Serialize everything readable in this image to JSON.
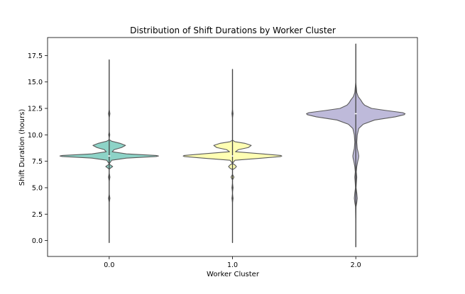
{
  "chart_data": {
    "type": "violin",
    "title": "Distribution of Shift Durations by Worker Cluster",
    "xlabel": "Worker Cluster",
    "ylabel": "Shift Duration (hours)",
    "ylim": [
      -1.5,
      19.2
    ],
    "yticks": [
      0.0,
      2.5,
      5.0,
      7.5,
      10.0,
      12.5,
      15.0,
      17.5
    ],
    "ytick_labels": [
      "0.0",
      "2.5",
      "5.0",
      "7.5",
      "10.0",
      "12.5",
      "15.0",
      "17.5"
    ],
    "categories": [
      "0.0",
      "1.0",
      "2.0"
    ],
    "grid": false,
    "colors": {
      "axes": "#000000",
      "edge": "#5a5a5a",
      "inner": "#444444"
    },
    "violins": [
      {
        "category": "0.0",
        "color": "#8dd3c7",
        "whisker": [
          -0.2,
          17.1
        ],
        "median": 8.0,
        "profile": [
          [
            -0.2,
            0.0
          ],
          [
            3.6,
            0.0
          ],
          [
            4.0,
            0.015
          ],
          [
            4.4,
            0.0
          ],
          [
            5.6,
            0.0
          ],
          [
            6.0,
            0.015
          ],
          [
            6.4,
            0.0
          ],
          [
            6.75,
            0.0
          ],
          [
            6.9,
            0.04
          ],
          [
            7.0,
            0.07
          ],
          [
            7.1,
            0.04
          ],
          [
            7.25,
            0.0
          ],
          [
            7.6,
            0.05
          ],
          [
            7.8,
            0.35
          ],
          [
            7.95,
            0.95
          ],
          [
            8.0,
            1.0
          ],
          [
            8.05,
            0.95
          ],
          [
            8.2,
            0.35
          ],
          [
            8.4,
            0.06
          ],
          [
            8.6,
            0.1
          ],
          [
            8.8,
            0.25
          ],
          [
            9.0,
            0.33
          ],
          [
            9.2,
            0.22
          ],
          [
            9.4,
            0.05
          ],
          [
            9.55,
            0.0
          ],
          [
            9.7,
            0.0
          ],
          [
            10.0,
            0.012
          ],
          [
            10.3,
            0.0
          ],
          [
            11.6,
            0.0
          ],
          [
            12.0,
            0.015
          ],
          [
            12.4,
            0.0
          ],
          [
            17.1,
            0.0
          ]
        ]
      },
      {
        "category": "1.0",
        "color": "#ffffb3",
        "whisker": [
          -0.2,
          16.2
        ],
        "median": 8.0,
        "profile": [
          [
            -0.2,
            0.0
          ],
          [
            3.6,
            0.0
          ],
          [
            4.0,
            0.012
          ],
          [
            4.4,
            0.0
          ],
          [
            4.6,
            0.0
          ],
          [
            5.0,
            0.012
          ],
          [
            5.4,
            0.0
          ],
          [
            5.75,
            0.0
          ],
          [
            5.9,
            0.02
          ],
          [
            6.0,
            0.03
          ],
          [
            6.1,
            0.02
          ],
          [
            6.25,
            0.0
          ],
          [
            6.7,
            0.0
          ],
          [
            6.85,
            0.05
          ],
          [
            7.0,
            0.08
          ],
          [
            7.15,
            0.05
          ],
          [
            7.3,
            0.0
          ],
          [
            7.6,
            0.05
          ],
          [
            7.8,
            0.6
          ],
          [
            7.95,
            0.98
          ],
          [
            8.0,
            1.0
          ],
          [
            8.05,
            0.98
          ],
          [
            8.2,
            0.6
          ],
          [
            8.4,
            0.06
          ],
          [
            8.6,
            0.12
          ],
          [
            8.8,
            0.32
          ],
          [
            9.0,
            0.38
          ],
          [
            9.2,
            0.25
          ],
          [
            9.35,
            0.05
          ],
          [
            9.5,
            0.0
          ],
          [
            11.6,
            0.0
          ],
          [
            12.0,
            0.012
          ],
          [
            12.4,
            0.0
          ],
          [
            16.2,
            0.0
          ]
        ]
      },
      {
        "category": "2.0",
        "color": "#bebada",
        "whisker": [
          -0.6,
          18.6
        ],
        "median": 12.0,
        "profile": [
          [
            -0.6,
            0.0
          ],
          [
            1.5,
            0.0
          ],
          [
            3.2,
            0.005
          ],
          [
            3.6,
            0.02
          ],
          [
            4.0,
            0.03
          ],
          [
            4.5,
            0.02
          ],
          [
            5.0,
            0.006
          ],
          [
            5.5,
            0.012
          ],
          [
            6.0,
            0.02
          ],
          [
            6.5,
            0.01
          ],
          [
            7.0,
            0.02
          ],
          [
            7.5,
            0.04
          ],
          [
            7.8,
            0.055
          ],
          [
            8.0,
            0.06
          ],
          [
            8.3,
            0.05
          ],
          [
            8.7,
            0.03
          ],
          [
            9.3,
            0.02
          ],
          [
            10.0,
            0.03
          ],
          [
            10.6,
            0.06
          ],
          [
            11.0,
            0.15
          ],
          [
            11.4,
            0.38
          ],
          [
            11.7,
            0.8
          ],
          [
            11.9,
            0.98
          ],
          [
            12.0,
            1.0
          ],
          [
            12.1,
            0.95
          ],
          [
            12.3,
            0.62
          ],
          [
            12.5,
            0.32
          ],
          [
            12.8,
            0.18
          ],
          [
            13.0,
            0.14
          ],
          [
            13.3,
            0.1
          ],
          [
            13.6,
            0.05
          ],
          [
            14.0,
            0.02
          ],
          [
            15.0,
            0.0
          ],
          [
            18.6,
            0.0
          ]
        ]
      }
    ]
  }
}
